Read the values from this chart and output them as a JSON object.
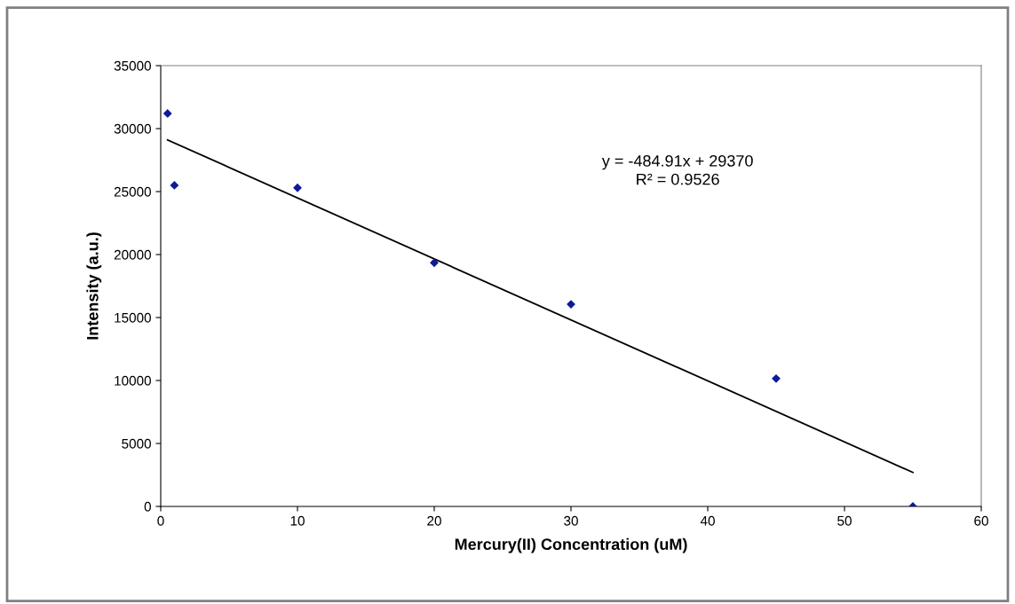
{
  "chart_data": {
    "type": "scatter",
    "xlabel": "Mercury(II) Concentration (uM)",
    "ylabel": "Intensity (a.u.)",
    "x": [
      0.5,
      1,
      10,
      20,
      30,
      45,
      55
    ],
    "series": [
      {
        "color": "#0d1a99",
        "marker": "diamond",
        "values": [
          31200,
          25500,
          25300,
          19350,
          16050,
          10150,
          0
        ]
      },
      {
        "type": "line",
        "color": "#000000",
        "line_style": "solid",
        "x": [
          0.5,
          55
        ],
        "values": [
          29100,
          2700
        ]
      }
    ],
    "annotations": [
      "y = -484.91x + 29370\nR² = 0.9526"
    ],
    "xlim": [
      0,
      60
    ],
    "xticks": [
      0,
      10,
      20,
      30,
      40,
      50,
      60
    ],
    "ylim": [
      0,
      35000
    ],
    "yticks": [
      0,
      5000,
      10000,
      15000,
      20000,
      25000,
      30000,
      35000
    ],
    "grid": false,
    "legend": false
  }
}
